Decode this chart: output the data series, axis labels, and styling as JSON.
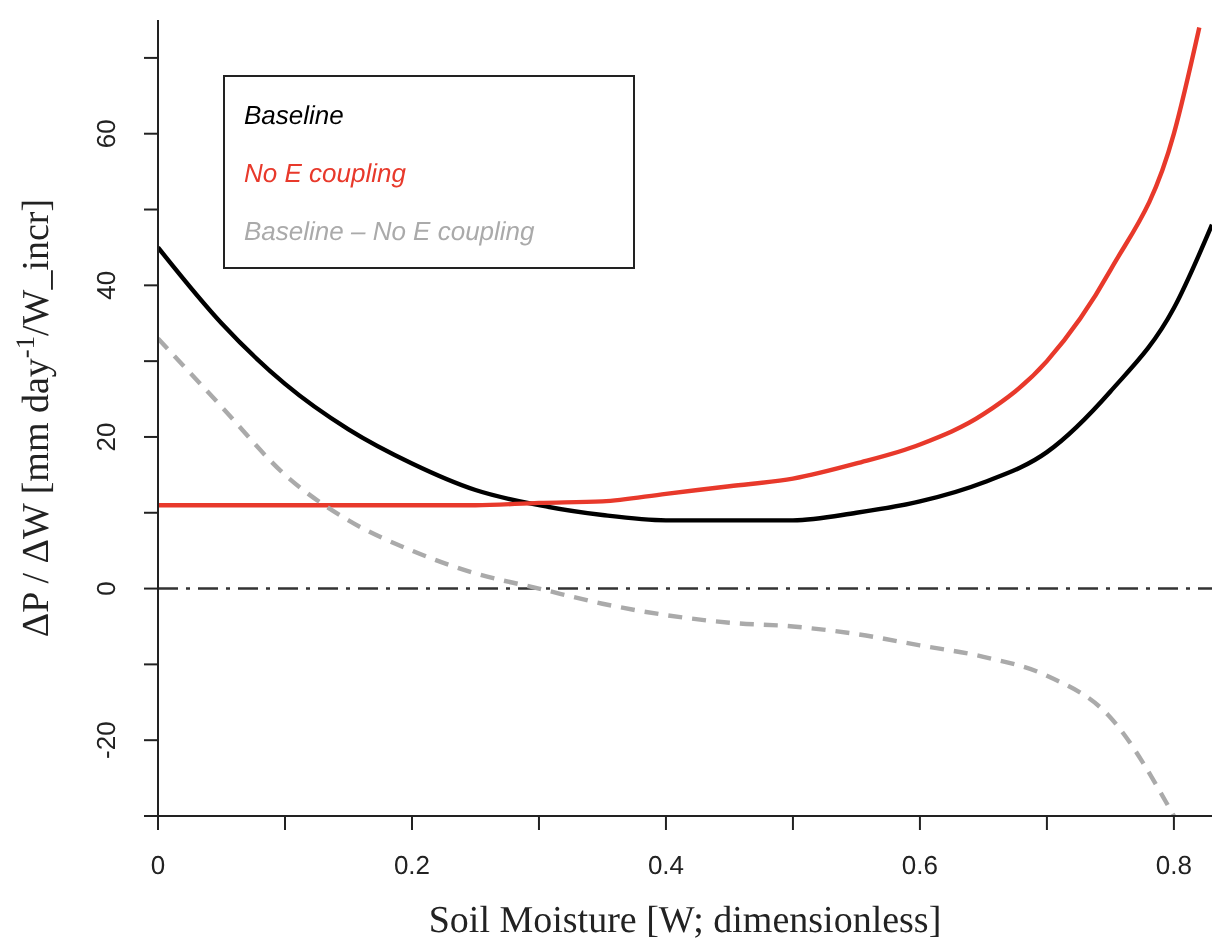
{
  "chart_data": {
    "type": "line",
    "xlabel": "Soil Moisture [W; dimensionless]",
    "ylabel": "ΔP / ΔW  [mm day$^{-1}$/W_incr]",
    "xlim": [
      0,
      0.83
    ],
    "ylim": [
      -30,
      75
    ],
    "xticks": [
      0,
      {
        "value": 0.1,
        "label": null
      },
      0.2,
      {
        "value": 0.3,
        "label": null
      },
      0.4,
      {
        "value": 0.5,
        "label": null
      },
      0.6,
      {
        "value": 0.7,
        "label": null
      },
      0.8
    ],
    "yticks": [
      {
        "value": -30,
        "label": null
      },
      -20,
      {
        "value": -10,
        "label": null
      },
      0,
      {
        "value": 10,
        "label": null
      },
      20,
      {
        "value": 30,
        "label": null
      },
      40,
      {
        "value": 50,
        "label": null
      },
      60,
      {
        "value": 70,
        "label": null
      }
    ],
    "x": [
      0,
      0.05,
      0.1,
      0.15,
      0.2,
      0.25,
      0.3,
      0.35,
      0.4,
      0.45,
      0.5,
      0.55,
      0.6,
      0.65,
      0.7,
      0.75,
      0.8,
      0.83
    ],
    "legend": "top left",
    "grid": false,
    "ref_lines": [
      {
        "axis": "y",
        "value": 0,
        "color": "#333333",
        "line_style": "dashdot"
      }
    ],
    "series": [
      {
        "name": "Baseline",
        "color": "#000000",
        "line_style": "solid",
        "values": [
          45,
          35,
          27,
          21,
          16.5,
          13,
          11,
          9.7,
          9,
          9,
          9,
          10,
          11.5,
          14,
          18,
          26,
          37,
          48
        ]
      },
      {
        "name": "No E coupling",
        "color": "#e8392b",
        "line_style": "solid",
        "x": [
          0,
          0.05,
          0.1,
          0.15,
          0.2,
          0.25,
          0.3,
          0.35,
          0.4,
          0.45,
          0.5,
          0.55,
          0.6,
          0.65,
          0.7,
          0.75,
          0.8,
          0.82
        ],
        "values": [
          11,
          11,
          11,
          11,
          11,
          11,
          11.3,
          11.5,
          12.5,
          13.5,
          14.5,
          16.5,
          19,
          23,
          30,
          42,
          60,
          74
        ]
      },
      {
        "name": "Baseline – No E coupling",
        "color": "#aaaaaa",
        "line_style": "dashed",
        "values": [
          33,
          24,
          15,
          9,
          5,
          2,
          0,
          -2,
          -3.5,
          -4.5,
          -5,
          -6,
          -7.5,
          -9,
          -11.5,
          -17,
          -30,
          null
        ]
      }
    ]
  }
}
